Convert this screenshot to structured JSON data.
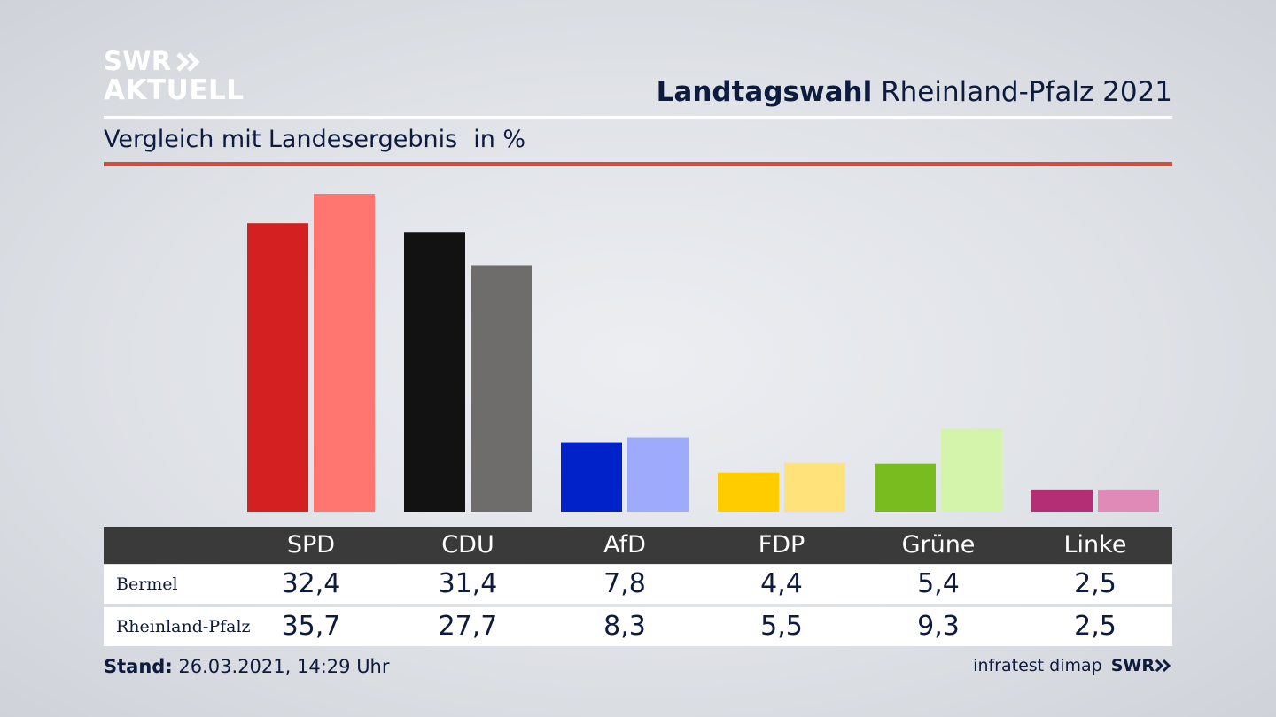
{
  "brand": {
    "logo_line1": "SWR",
    "logo_line2": "AKTUELL",
    "chevron_icon": "double-chevron-right-icon"
  },
  "header": {
    "title_bold": "Landtagswahl",
    "title_rest": "Rheinland-Pfalz 2021",
    "subtitle": "Vergleich mit Landesergebnis",
    "unit": "in %"
  },
  "colors": {
    "accent_rule": "#d24d3a",
    "table_header_bg": "#3a3a3a"
  },
  "chart_data": {
    "type": "bar",
    "title": "Vergleich mit Landesergebnis",
    "ylabel": "in %",
    "categories": [
      "SPD",
      "CDU",
      "AfD",
      "FDP",
      "Grüne",
      "Linke"
    ],
    "series": [
      {
        "name": "Bermel",
        "values": [
          32.4,
          31.4,
          7.8,
          4.4,
          5.4,
          2.5
        ],
        "colors": [
          "#d42020",
          "#121212",
          "#0022c8",
          "#ffcc00",
          "#78bc20",
          "#b42e75"
        ]
      },
      {
        "name": "Rheinland-Pfalz",
        "values": [
          35.7,
          27.7,
          8.3,
          5.5,
          9.3,
          2.5
        ],
        "colors": [
          "#ff7670",
          "#6e6d6c",
          "#9eaafc",
          "#ffe27a",
          "#d4f4ab",
          "#e08ab8"
        ]
      }
    ],
    "ylim": [
      0,
      36
    ],
    "grid": false,
    "legend": "table below chart"
  },
  "table": {
    "headers": [
      "SPD",
      "CDU",
      "AfD",
      "FDP",
      "Grüne",
      "Linke"
    ],
    "rows": [
      {
        "label": "Bermel",
        "values": [
          "32,4",
          "31,4",
          "7,8",
          "4,4",
          "5,4",
          "2,5"
        ]
      },
      {
        "label": "Rheinland-Pfalz",
        "values": [
          "35,7",
          "27,7",
          "8,3",
          "5,5",
          "9,3",
          "2,5"
        ]
      }
    ]
  },
  "footer": {
    "stand_label": "Stand:",
    "stand_value": "26.03.2021, 14:29 Uhr",
    "source": "infratest dimap",
    "swr_logo": "SWR"
  }
}
